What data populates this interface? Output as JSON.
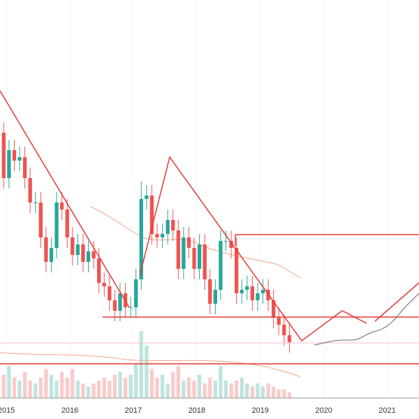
{
  "chart_data": {
    "type": "candlestick",
    "xticks": [
      2015,
      2016,
      2017,
      2018,
      2019,
      2020,
      2021
    ],
    "xlim": [
      2014.9,
      2021.5
    ],
    "ylim": [
      0,
      114
    ],
    "vlim": [
      0,
      120
    ],
    "grid": true,
    "up_color": "#26a69a",
    "down_color": "#ef5350",
    "open": [
      76,
      63,
      71,
      68,
      69,
      63,
      56,
      56,
      46,
      39,
      43,
      56,
      54,
      46,
      41,
      44,
      39,
      42,
      40,
      33,
      32,
      28,
      25,
      30,
      26,
      26,
      34,
      57,
      58,
      47,
      46,
      47,
      51,
      48,
      37,
      46,
      43,
      37,
      44,
      34,
      27,
      31,
      45,
      45,
      43,
      30,
      31,
      32,
      28,
      30,
      31,
      28,
      23,
      21,
      18
    ],
    "high": [
      79,
      74,
      74,
      72,
      72,
      66,
      59,
      59,
      49,
      46,
      59,
      59,
      57,
      49,
      47,
      47,
      45,
      45,
      43,
      36,
      35,
      31,
      33,
      33,
      29,
      37,
      62,
      61,
      61,
      50,
      50,
      54,
      54,
      51,
      49,
      49,
      46,
      47,
      47,
      37,
      34,
      48,
      48,
      48,
      46,
      34,
      35,
      35,
      33,
      34,
      34,
      31,
      26,
      24,
      21
    ],
    "low": [
      60,
      60,
      65,
      65,
      60,
      53,
      53,
      43,
      36,
      36,
      40,
      51,
      43,
      38,
      38,
      36,
      36,
      37,
      30,
      29,
      25,
      22,
      22,
      23,
      23,
      23,
      31,
      54,
      44,
      43,
      43,
      44,
      45,
      34,
      34,
      40,
      34,
      34,
      31,
      24,
      24,
      28,
      42,
      40,
      27,
      27,
      28,
      25,
      25,
      27,
      25,
      20,
      18,
      15,
      13
    ],
    "close": [
      63,
      71,
      68,
      69,
      63,
      56,
      56,
      46,
      39,
      43,
      56,
      54,
      46,
      41,
      44,
      39,
      42,
      40,
      33,
      32,
      28,
      25,
      30,
      26,
      26,
      34,
      57,
      58,
      47,
      46,
      47,
      51,
      48,
      37,
      46,
      43,
      37,
      44,
      34,
      27,
      31,
      45,
      45,
      43,
      30,
      31,
      32,
      28,
      30,
      31,
      28,
      23,
      21,
      18,
      16
    ],
    "volume": [
      40,
      55,
      35,
      30,
      45,
      30,
      25,
      35,
      50,
      40,
      30,
      45,
      35,
      50,
      30,
      25,
      20,
      25,
      30,
      35,
      30,
      40,
      45,
      35,
      40,
      60,
      115,
      90,
      50,
      35,
      40,
      25,
      45,
      55,
      30,
      35,
      30,
      40,
      25,
      35,
      30,
      55,
      30,
      25,
      30,
      35,
      25,
      20,
      25,
      20,
      25,
      20,
      15,
      15,
      10
    ]
  }
}
